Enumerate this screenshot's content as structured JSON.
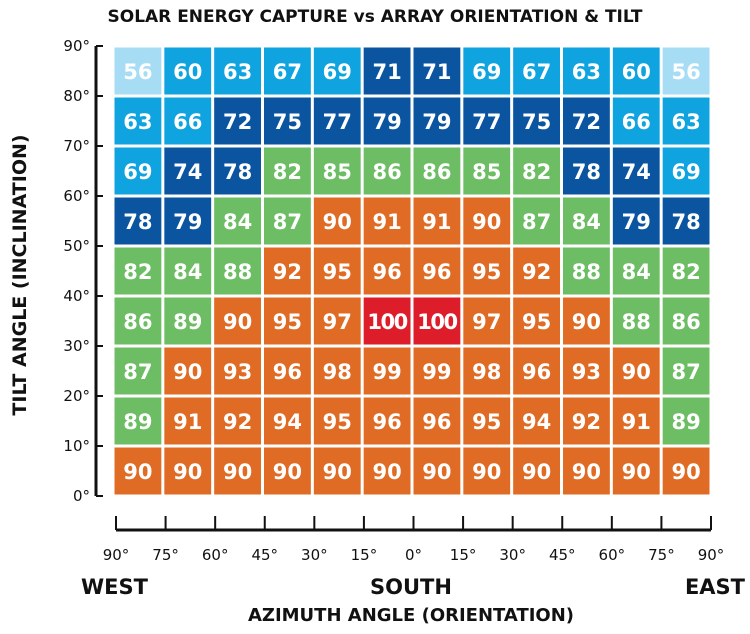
{
  "chart_data": {
    "type": "heatmap",
    "title": "SOLAR ENERGY CAPTURE vs ARRAY ORIENTATION & TILT",
    "xlabel": "AZIMUTH ANGLE (ORIENTATION)",
    "ylabel": "TILT ANGLE (INCLINATION)",
    "x_ticks": [
      "90°",
      "75°",
      "60°",
      "45°",
      "30°",
      "15°",
      "0°",
      "15°",
      "30°",
      "45°",
      "60°",
      "75°",
      "90°"
    ],
    "y_ticks": [
      "0°",
      "10°",
      "20°",
      "30°",
      "40°",
      "50°",
      "60°",
      "70°",
      "80°",
      "90°"
    ],
    "direction_labels": {
      "left": "WEST",
      "center": "SOUTH",
      "right": "EAST"
    },
    "rows_top_to_bottom": [
      [
        56,
        60,
        63,
        67,
        69,
        71,
        71,
        69,
        67,
        63,
        60,
        56
      ],
      [
        63,
        66,
        72,
        75,
        77,
        79,
        79,
        77,
        75,
        72,
        66,
        63
      ],
      [
        69,
        74,
        78,
        82,
        85,
        86,
        86,
        85,
        82,
        78,
        74,
        69
      ],
      [
        78,
        79,
        84,
        87,
        90,
        91,
        91,
        90,
        87,
        84,
        79,
        78
      ],
      [
        82,
        84,
        88,
        92,
        95,
        96,
        96,
        95,
        92,
        88,
        84,
        82
      ],
      [
        86,
        89,
        90,
        95,
        97,
        100,
        100,
        97,
        95,
        90,
        88,
        86
      ],
      [
        87,
        90,
        93,
        96,
        98,
        99,
        99,
        98,
        96,
        93,
        90,
        87
      ],
      [
        89,
        91,
        92,
        94,
        95,
        96,
        96,
        95,
        94,
        92,
        91,
        89
      ],
      [
        90,
        90,
        90,
        90,
        90,
        90,
        90,
        90,
        90,
        90,
        90,
        90
      ]
    ],
    "colors": {
      "lightest_blue": "#a6dcf4",
      "light_blue": "#0fa3e0",
      "dark_blue": "#0a54a0",
      "green": "#6cbd63",
      "orange": "#e06b24",
      "red": "#dd1e2a"
    },
    "color_rules": [
      {
        "min": 0,
        "max": 56,
        "color": "lightest_blue"
      },
      {
        "min": 57,
        "max": 70,
        "color": "light_blue"
      },
      {
        "min": 71,
        "max": 79,
        "color": "dark_blue"
      },
      {
        "min": 80,
        "max": 89,
        "color": "green"
      },
      {
        "min": 90,
        "max": 99,
        "color": "orange"
      },
      {
        "min": 100,
        "max": 100,
        "color": "red"
      }
    ],
    "exceptions": [
      {
        "row": 0,
        "col": 6,
        "color": "dark_blue"
      },
      {
        "row": 1,
        "col": 1,
        "color": "light_blue"
      },
      {
        "row": 1,
        "col": 10,
        "color": "light_blue"
      },
      {
        "row": 3,
        "col": 0,
        "color": "dark_blue"
      },
      {
        "row": 3,
        "col": 11,
        "color": "dark_blue"
      },
      {
        "row": 5,
        "col": 2,
        "color": "orange"
      },
      {
        "row": 5,
        "col": 9,
        "color": "orange"
      }
    ]
  }
}
